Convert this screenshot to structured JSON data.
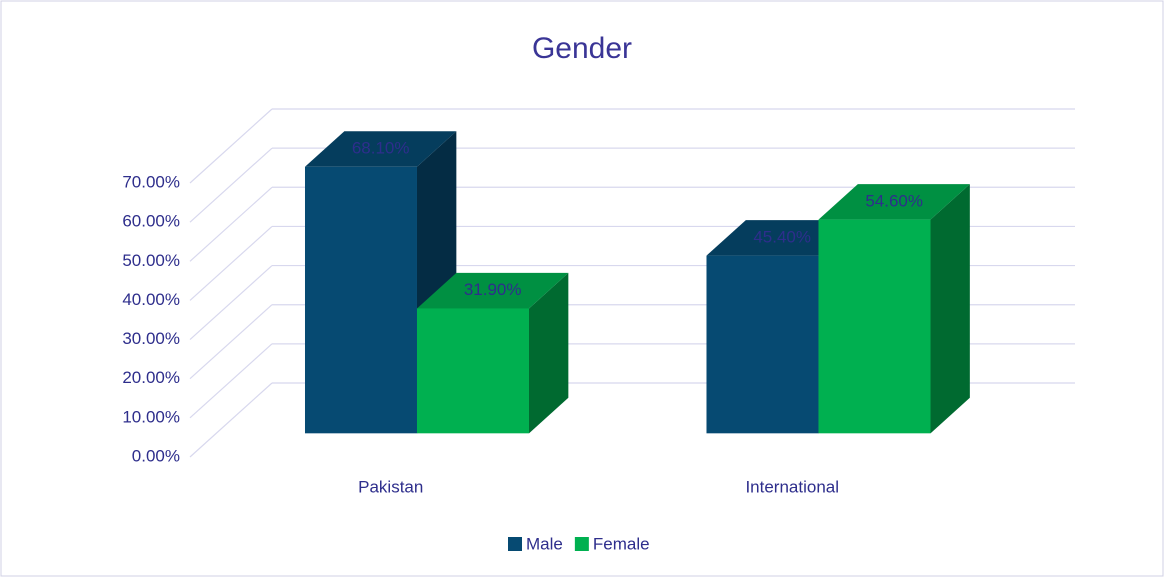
{
  "chart_data": {
    "type": "bar3d",
    "title": "Gender",
    "categories": [
      "Pakistan",
      "International"
    ],
    "series": [
      {
        "name": "Male",
        "color": "#064a72",
        "values": [
          68.1,
          45.4
        ],
        "value_labels": [
          "68.10%",
          "45.40%"
        ]
      },
      {
        "name": "Female",
        "color": "#00b050",
        "values": [
          31.9,
          54.6
        ],
        "value_labels": [
          "31.90%",
          "54.60%"
        ]
      }
    ],
    "ylim": [
      0,
      70
    ],
    "yticks": [
      {
        "value": 0,
        "label": "0.00%"
      },
      {
        "value": 10,
        "label": "10.00%"
      },
      {
        "value": 20,
        "label": "20.00%"
      },
      {
        "value": 30,
        "label": "30.00%"
      },
      {
        "value": 40,
        "label": "40.00%"
      },
      {
        "value": 50,
        "label": "50.00%"
      },
      {
        "value": 60,
        "label": "60.00%"
      },
      {
        "value": 70,
        "label": "70.00%"
      }
    ],
    "grid": true,
    "legend": "bottom"
  }
}
